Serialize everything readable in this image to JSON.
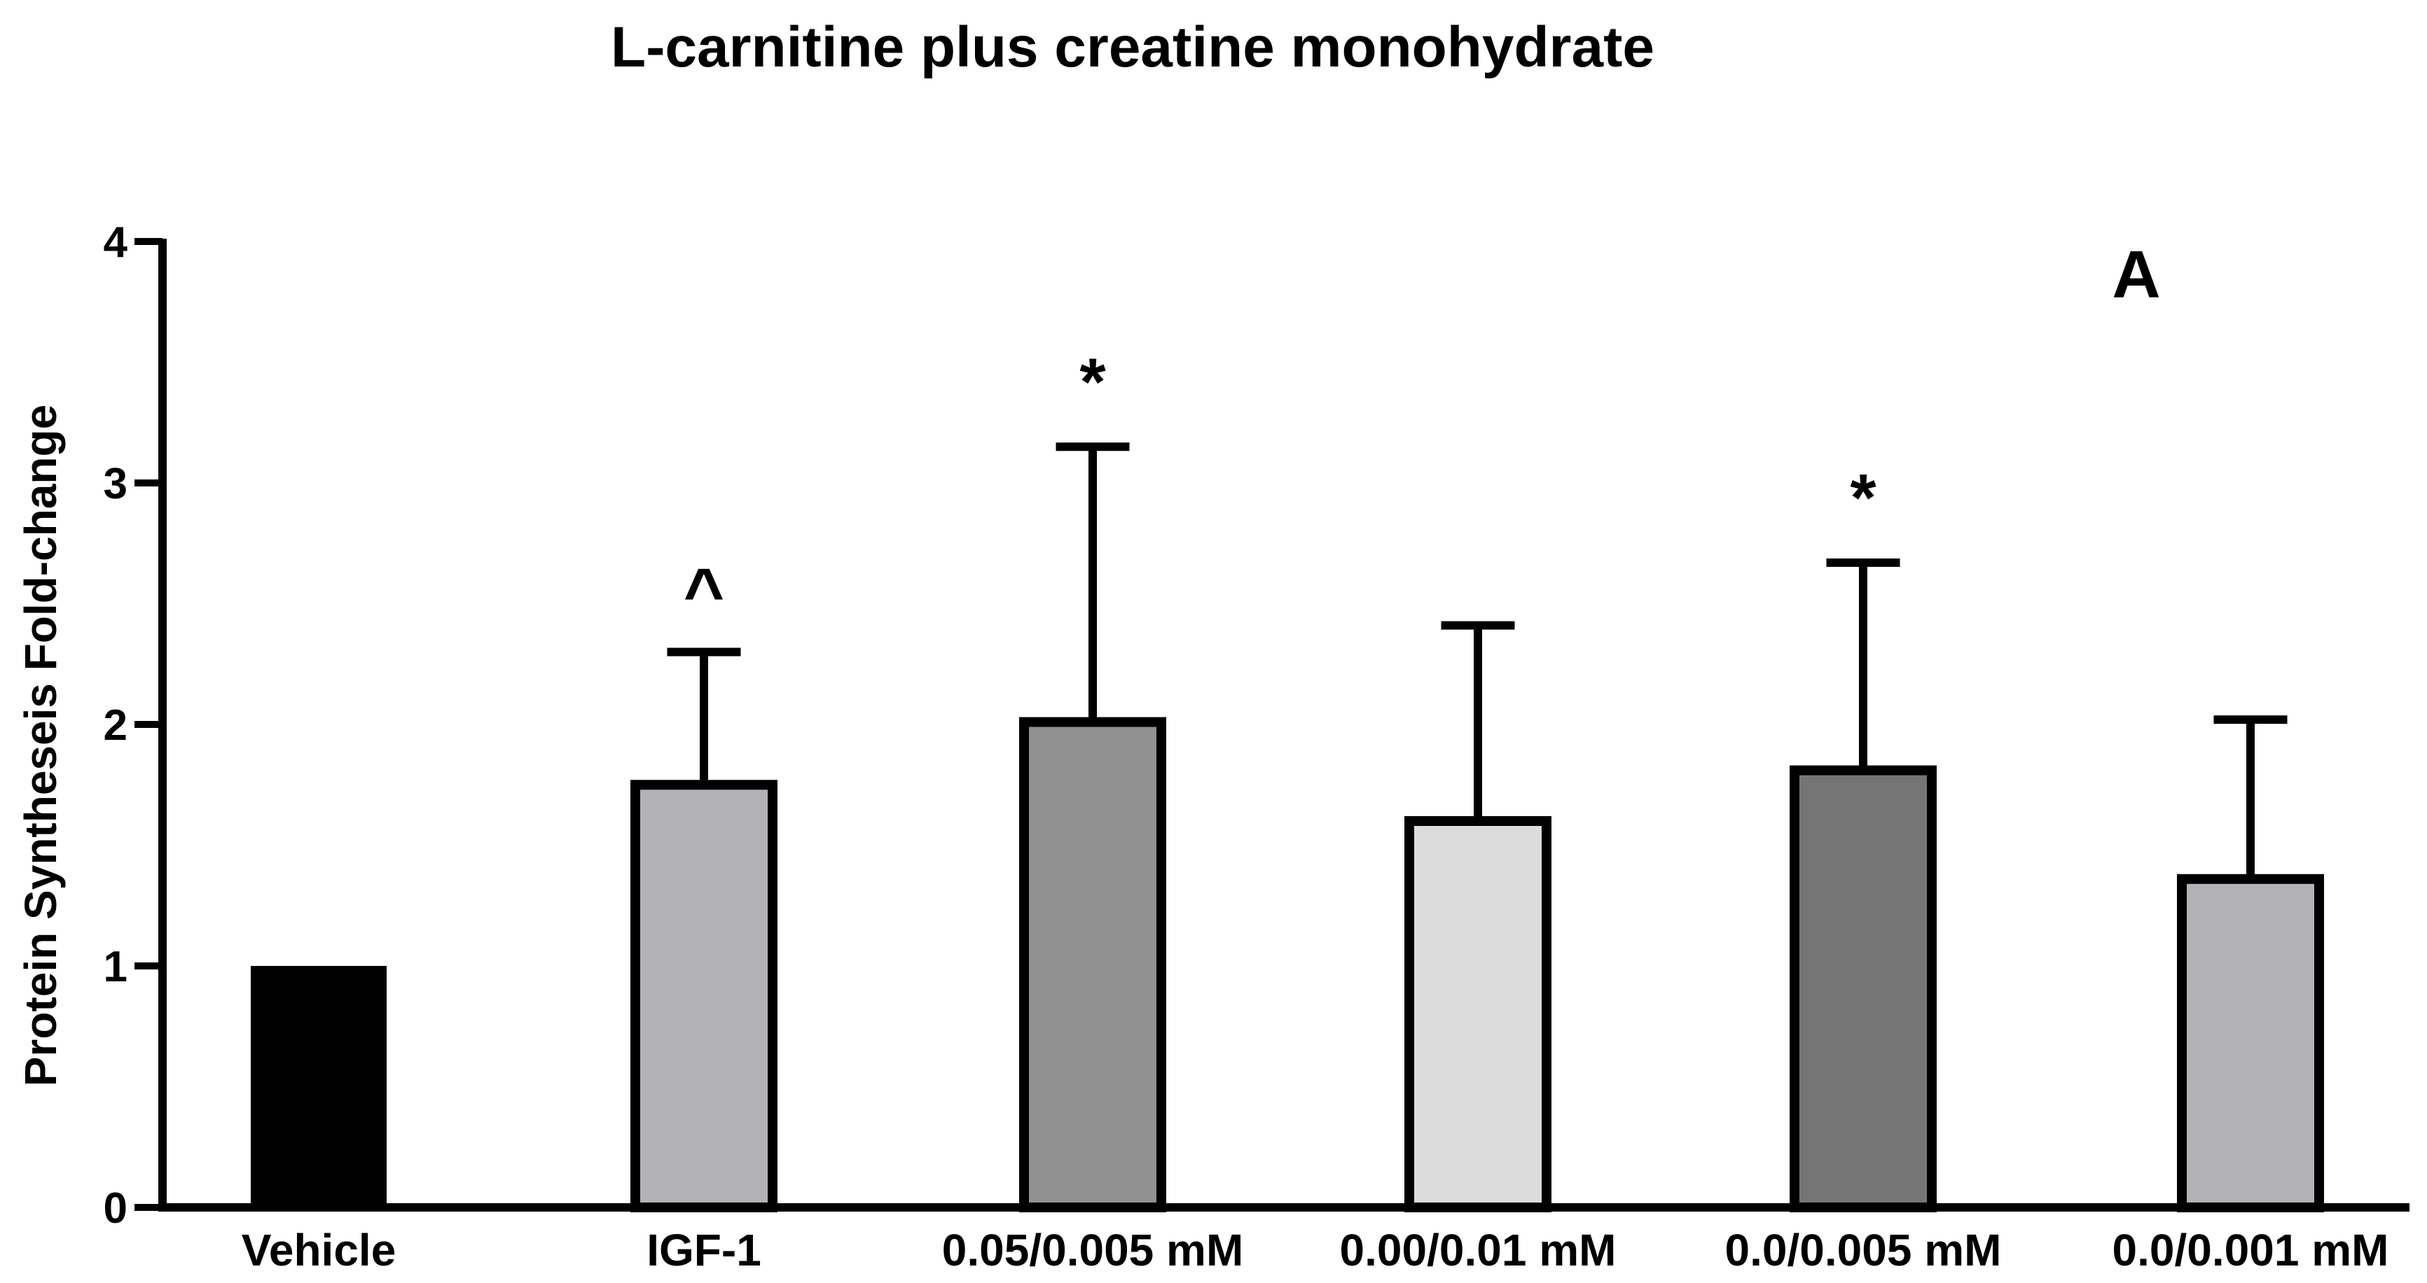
{
  "chart_data": {
    "type": "bar",
    "title": "L-carnitine plus creatine monohydrate",
    "panel_label": "A",
    "xlabel": "",
    "ylabel": "Protein Syntheseis Fold-change",
    "ylim": [
      0,
      4
    ],
    "yticks": [
      "0",
      "1",
      "2",
      "3",
      "4"
    ],
    "grid": false,
    "categories": [
      "Vehicle",
      "IGF-1",
      "0.05/0.005 mM",
      "0.00/0.01 mM",
      "0.0/0.005 mM",
      "0.0/0.001 mM"
    ],
    "values": [
      1.0,
      1.75,
      2.01,
      1.6,
      1.81,
      1.36
    ],
    "error_upper": [
      0,
      0.55,
      1.14,
      0.81,
      0.86,
      0.66
    ],
    "significance": [
      "",
      "^",
      "*",
      "",
      "*",
      ""
    ],
    "colors": [
      "#000000",
      "#b3b2b7",
      "#919191",
      "#dcdcdc",
      "#757575",
      "#b3b2b7"
    ],
    "outline_color": "#000000"
  }
}
